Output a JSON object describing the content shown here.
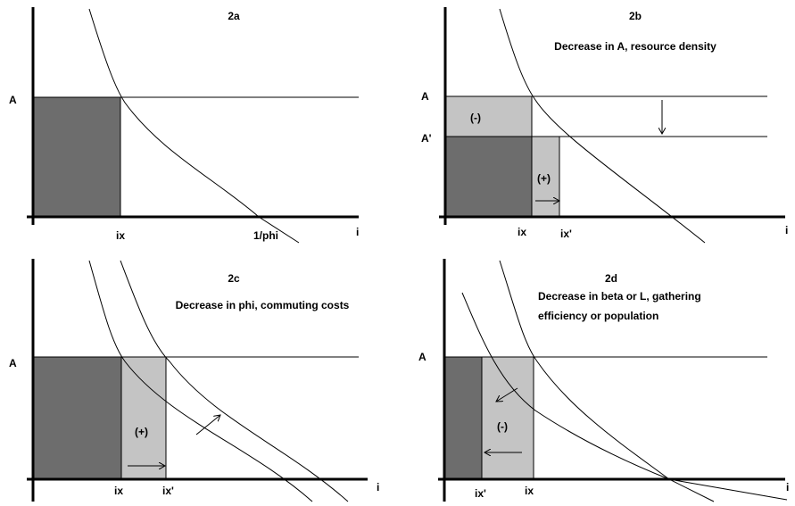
{
  "panels": [
    {
      "title": "2a",
      "labels": [
        "A",
        "ix",
        "1/phi",
        "i"
      ]
    },
    {
      "title": "2b",
      "subtitle": "Decrease in A, resource density",
      "labels": [
        "A",
        "A'",
        "(-)",
        "(+)",
        "ix",
        "ix'",
        "i"
      ]
    },
    {
      "title": "2c",
      "subtitle": "Decrease in phi, commuting costs",
      "labels": [
        "A",
        "(+)",
        "ix",
        "ix'",
        "i"
      ]
    },
    {
      "title": "2d",
      "subtitle": [
        "Decrease in beta or L, gathering",
        "efficiency or population"
      ],
      "labels": [
        "A",
        "(-)",
        "ix'",
        "ix",
        "i"
      ]
    }
  ]
}
